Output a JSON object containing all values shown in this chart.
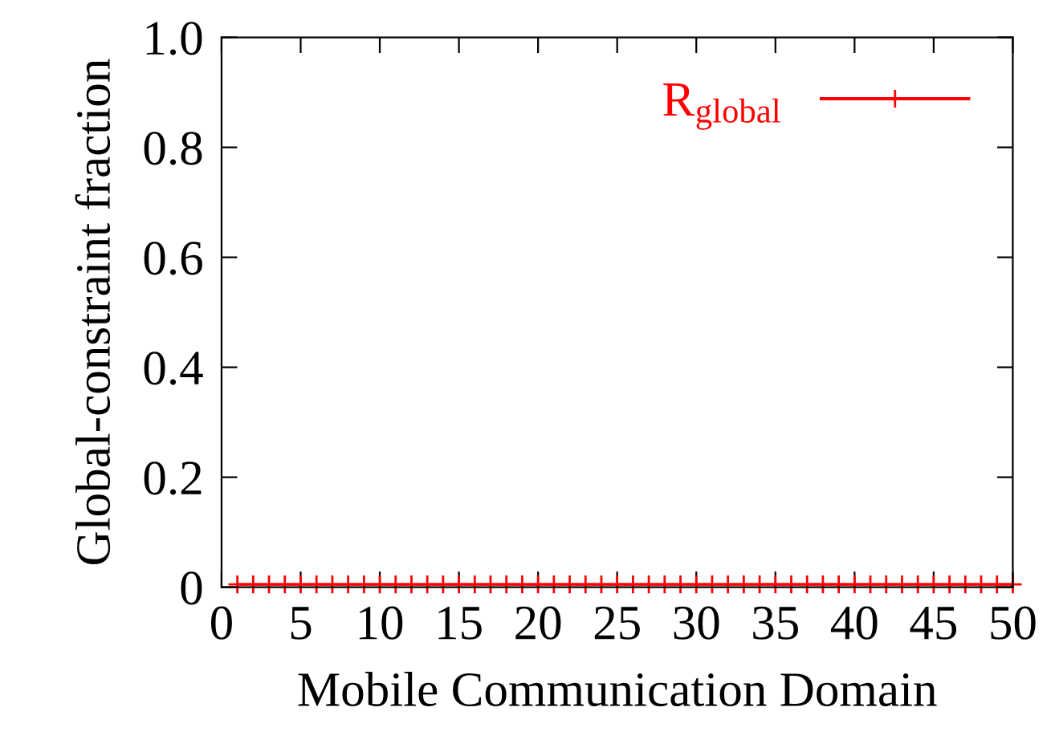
{
  "chart_data": {
    "type": "line",
    "xlabel": "Mobile Communication Domain",
    "ylabel": "Global-constraint fraction",
    "x": [
      1,
      2,
      3,
      4,
      5,
      6,
      7,
      8,
      9,
      10,
      11,
      12,
      13,
      14,
      15,
      16,
      17,
      18,
      19,
      20,
      21,
      22,
      23,
      24,
      25,
      26,
      27,
      28,
      29,
      30,
      31,
      32,
      33,
      34,
      35,
      36,
      37,
      38,
      39,
      40,
      41,
      42,
      43,
      44,
      45,
      46,
      47,
      48,
      49,
      50
    ],
    "series": [
      {
        "name": "R$_{global}$",
        "color": "#ff0000",
        "values": [
          0.005,
          0.005,
          0.005,
          0.005,
          0.005,
          0.005,
          0.005,
          0.005,
          0.005,
          0.005,
          0.005,
          0.005,
          0.005,
          0.005,
          0.005,
          0.005,
          0.005,
          0.005,
          0.005,
          0.005,
          0.005,
          0.005,
          0.005,
          0.005,
          0.005,
          0.005,
          0.005,
          0.005,
          0.005,
          0.005,
          0.005,
          0.005,
          0.005,
          0.005,
          0.005,
          0.005,
          0.005,
          0.005,
          0.005,
          0.005,
          0.005,
          0.005,
          0.005,
          0.005,
          0.005,
          0.005,
          0.005,
          0.005,
          0.005,
          0.005
        ]
      }
    ],
    "xlim": [
      0,
      50
    ],
    "ylim": [
      0,
      1
    ],
    "xticks": [
      0,
      5,
      10,
      15,
      20,
      25,
      30,
      35,
      40,
      45,
      50
    ],
    "yticks": [
      0,
      0.2,
      0.4,
      0.6,
      0.8,
      {
        "value": 1.0,
        "label": "1.0"
      }
    ],
    "marker": "cross",
    "line_style": "solid",
    "legend": "top right",
    "grid": false
  }
}
